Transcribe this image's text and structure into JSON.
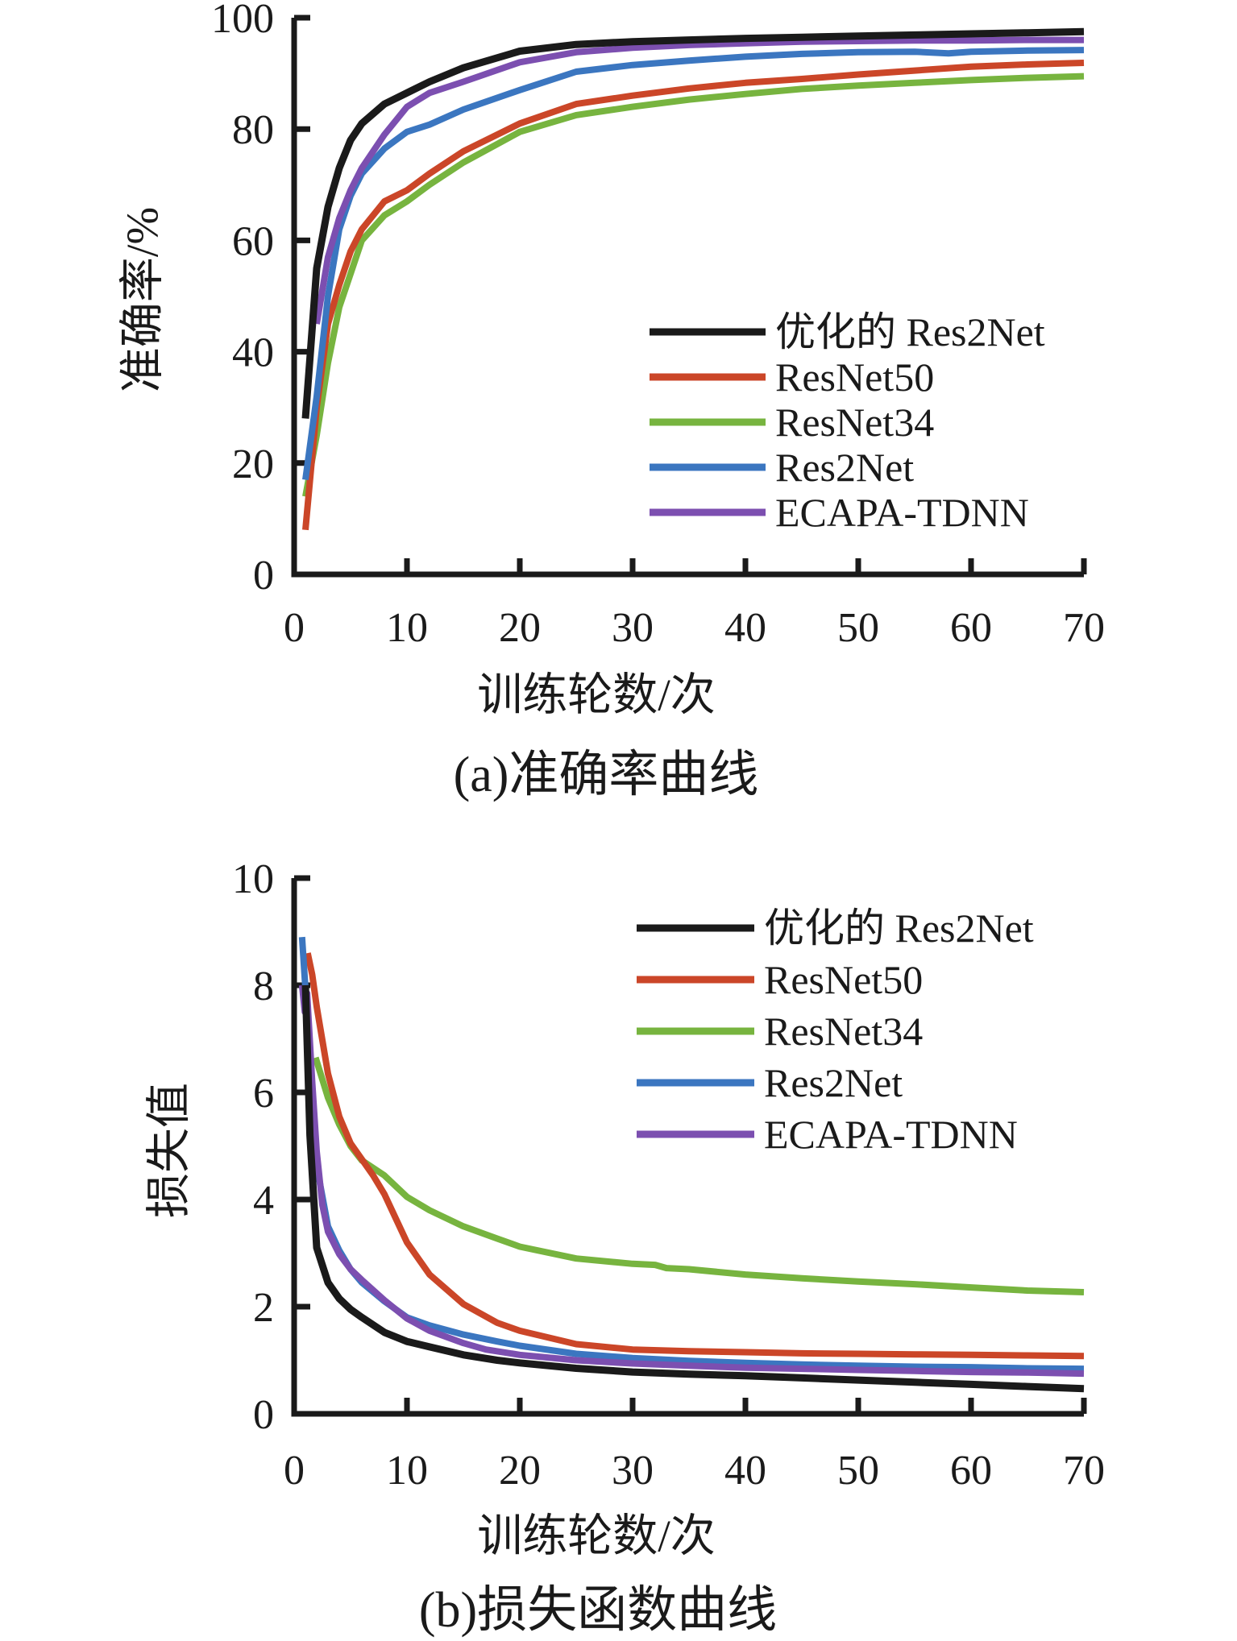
{
  "chart_data": [
    {
      "id": "accuracy",
      "type": "line",
      "title": "",
      "xlabel": "训练轮数/次",
      "ylabel": "准确率/%",
      "caption": "(a)准确率曲线",
      "xlim": [
        0,
        70
      ],
      "ylim": [
        0,
        100
      ],
      "xticks": [
        0,
        10,
        20,
        30,
        40,
        50,
        60,
        70
      ],
      "yticks": [
        0,
        20,
        40,
        60,
        80,
        100
      ],
      "grid": false,
      "legend_position": "inside-right-upper-middle",
      "series": [
        {
          "name": "优化的 Res2Net",
          "color": "#1a1a1a",
          "points": [
            [
              1,
              28
            ],
            [
              2,
              55
            ],
            [
              3,
              66
            ],
            [
              4,
              73
            ],
            [
              5,
              78
            ],
            [
              6,
              81
            ],
            [
              8,
              84.5
            ],
            [
              10,
              86.5
            ],
            [
              12,
              88.5
            ],
            [
              15,
              91
            ],
            [
              20,
              94
            ],
            [
              25,
              95.2
            ],
            [
              30,
              95.7
            ],
            [
              35,
              96
            ],
            [
              40,
              96.3
            ],
            [
              45,
              96.5
            ],
            [
              50,
              96.7
            ],
            [
              55,
              96.9
            ],
            [
              60,
              97.1
            ],
            [
              65,
              97.3
            ],
            [
              70,
              97.5
            ]
          ]
        },
        {
          "name": "ResNet50",
          "color": "#cb4628",
          "points": [
            [
              1,
              8
            ],
            [
              2,
              30
            ],
            [
              3,
              45
            ],
            [
              4,
              52
            ],
            [
              5,
              58
            ],
            [
              6,
              62
            ],
            [
              8,
              67
            ],
            [
              10,
              69
            ],
            [
              12,
              72
            ],
            [
              15,
              76
            ],
            [
              20,
              81
            ],
            [
              25,
              84.5
            ],
            [
              30,
              86
            ],
            [
              35,
              87.3
            ],
            [
              40,
              88.3
            ],
            [
              45,
              89
            ],
            [
              50,
              89.8
            ],
            [
              55,
              90.5
            ],
            [
              60,
              91.2
            ],
            [
              65,
              91.6
            ],
            [
              70,
              91.9
            ]
          ]
        },
        {
          "name": "ResNet34",
          "color": "#77b43f",
          "points": [
            [
              1,
              14
            ],
            [
              2,
              25
            ],
            [
              3,
              38
            ],
            [
              4,
              48
            ],
            [
              5,
              54
            ],
            [
              6,
              60
            ],
            [
              8,
              64.5
            ],
            [
              10,
              67
            ],
            [
              12,
              70
            ],
            [
              15,
              74
            ],
            [
              20,
              79.5
            ],
            [
              25,
              82.5
            ],
            [
              30,
              84
            ],
            [
              35,
              85.3
            ],
            [
              40,
              86.3
            ],
            [
              45,
              87.2
            ],
            [
              50,
              87.8
            ],
            [
              55,
              88.3
            ],
            [
              60,
              88.8
            ],
            [
              65,
              89.2
            ],
            [
              70,
              89.5
            ]
          ]
        },
        {
          "name": "Res2Net",
          "color": "#3b76c0",
          "points": [
            [
              1,
              17
            ],
            [
              2,
              32
            ],
            [
              3,
              50
            ],
            [
              4,
              62
            ],
            [
              5,
              68
            ],
            [
              6,
              72
            ],
            [
              8,
              76.5
            ],
            [
              10,
              79.5
            ],
            [
              12,
              80.8
            ],
            [
              15,
              83.5
            ],
            [
              20,
              87
            ],
            [
              25,
              90.3
            ],
            [
              30,
              91.5
            ],
            [
              35,
              92.3
            ],
            [
              40,
              93
            ],
            [
              45,
              93.5
            ],
            [
              50,
              93.8
            ],
            [
              55,
              93.9
            ],
            [
              58,
              93.6
            ],
            [
              60,
              93.9
            ],
            [
              65,
              94.1
            ],
            [
              70,
              94.2
            ]
          ]
        },
        {
          "name": "ECAPA-TDNN",
          "color": "#7c4fb0",
          "points": [
            [
              2,
              45
            ],
            [
              3,
              57
            ],
            [
              4,
              64
            ],
            [
              5,
              69
            ],
            [
              6,
              73
            ],
            [
              8,
              79
            ],
            [
              10,
              84
            ],
            [
              12,
              86.5
            ],
            [
              15,
              88.5
            ],
            [
              20,
              92
            ],
            [
              25,
              93.8
            ],
            [
              30,
              94.6
            ],
            [
              35,
              95.1
            ],
            [
              40,
              95.4
            ],
            [
              45,
              95.7
            ],
            [
              50,
              95.8
            ],
            [
              55,
              95.9
            ],
            [
              60,
              95.9
            ],
            [
              65,
              96
            ],
            [
              70,
              96
            ]
          ]
        }
      ]
    },
    {
      "id": "loss",
      "type": "line",
      "title": "",
      "xlabel": "训练轮数/次",
      "ylabel": "损失值",
      "caption": "(b)损失函数曲线",
      "xlim": [
        0,
        70
      ],
      "ylim": [
        0,
        10
      ],
      "xticks": [
        0,
        10,
        20,
        30,
        40,
        50,
        60,
        70
      ],
      "yticks": [
        0,
        2,
        4,
        6,
        8,
        10
      ],
      "grid": false,
      "legend_position": "inside-right-upper",
      "series": [
        {
          "name": "优化的 Res2Net",
          "color": "#1a1a1a",
          "points": [
            [
              1,
              8.0
            ],
            [
              1.4,
              5.2
            ],
            [
              2,
              3.1
            ],
            [
              3,
              2.45
            ],
            [
              4,
              2.15
            ],
            [
              5,
              1.95
            ],
            [
              6,
              1.8
            ],
            [
              8,
              1.52
            ],
            [
              10,
              1.35
            ],
            [
              12,
              1.25
            ],
            [
              15,
              1.1
            ],
            [
              18,
              1.0
            ],
            [
              20,
              0.95
            ],
            [
              25,
              0.85
            ],
            [
              30,
              0.78
            ],
            [
              35,
              0.74
            ],
            [
              40,
              0.71
            ],
            [
              45,
              0.67
            ],
            [
              50,
              0.63
            ],
            [
              55,
              0.59
            ],
            [
              60,
              0.55
            ],
            [
              65,
              0.51
            ],
            [
              70,
              0.47
            ]
          ]
        },
        {
          "name": "ResNet50",
          "color": "#cb4628",
          "points": [
            [
              1.2,
              8.6
            ],
            [
              1.6,
              8.2
            ],
            [
              2,
              7.6
            ],
            [
              3,
              6.35
            ],
            [
              4,
              5.55
            ],
            [
              5,
              5.05
            ],
            [
              6,
              4.75
            ],
            [
              7,
              4.45
            ],
            [
              8,
              4.1
            ],
            [
              10,
              3.2
            ],
            [
              12,
              2.6
            ],
            [
              15,
              2.05
            ],
            [
              18,
              1.7
            ],
            [
              20,
              1.55
            ],
            [
              25,
              1.3
            ],
            [
              30,
              1.2
            ],
            [
              35,
              1.17
            ],
            [
              40,
              1.15
            ],
            [
              45,
              1.13
            ],
            [
              50,
              1.12
            ],
            [
              55,
              1.11
            ],
            [
              60,
              1.1
            ],
            [
              65,
              1.09
            ],
            [
              70,
              1.08
            ]
          ]
        },
        {
          "name": "ResNet34",
          "color": "#77b43f",
          "points": [
            [
              1.9,
              6.65
            ],
            [
              3,
              5.9
            ],
            [
              4,
              5.4
            ],
            [
              5,
              5.0
            ],
            [
              6,
              4.73
            ],
            [
              8,
              4.45
            ],
            [
              10,
              4.05
            ],
            [
              12,
              3.8
            ],
            [
              15,
              3.5
            ],
            [
              18,
              3.27
            ],
            [
              20,
              3.12
            ],
            [
              25,
              2.9
            ],
            [
              30,
              2.8
            ],
            [
              32,
              2.78
            ],
            [
              33,
              2.72
            ],
            [
              35,
              2.7
            ],
            [
              40,
              2.6
            ],
            [
              45,
              2.53
            ],
            [
              50,
              2.47
            ],
            [
              55,
              2.42
            ],
            [
              60,
              2.36
            ],
            [
              65,
              2.3
            ],
            [
              70,
              2.27
            ]
          ]
        },
        {
          "name": "Res2Net",
          "color": "#3b76c0",
          "points": [
            [
              0.7,
              8.9
            ],
            [
              1.2,
              7.3
            ],
            [
              1.7,
              5.5
            ],
            [
              2.2,
              4.4
            ],
            [
              3,
              3.5
            ],
            [
              4,
              3.05
            ],
            [
              5,
              2.7
            ],
            [
              6,
              2.45
            ],
            [
              8,
              2.1
            ],
            [
              10,
              1.8
            ],
            [
              12,
              1.65
            ],
            [
              15,
              1.48
            ],
            [
              18,
              1.35
            ],
            [
              20,
              1.27
            ],
            [
              25,
              1.12
            ],
            [
              30,
              1.04
            ],
            [
              35,
              0.99
            ],
            [
              40,
              0.95
            ],
            [
              45,
              0.92
            ],
            [
              50,
              0.9
            ],
            [
              55,
              0.88
            ],
            [
              60,
              0.87
            ],
            [
              65,
              0.85
            ],
            [
              70,
              0.84
            ]
          ]
        },
        {
          "name": "ECAPA-TDNN",
          "color": "#7c4fb0",
          "points": [
            [
              0.7,
              8.0
            ],
            [
              0.95,
              7.5
            ],
            [
              1.15,
              7.85
            ],
            [
              1.6,
              6.2
            ],
            [
              2,
              4.9
            ],
            [
              2.5,
              3.9
            ],
            [
              3,
              3.4
            ],
            [
              4,
              2.98
            ],
            [
              5,
              2.7
            ],
            [
              6,
              2.5
            ],
            [
              8,
              2.12
            ],
            [
              10,
              1.78
            ],
            [
              12,
              1.55
            ],
            [
              15,
              1.32
            ],
            [
              17,
              1.2
            ],
            [
              20,
              1.1
            ],
            [
              25,
              1.0
            ],
            [
              30,
              0.94
            ],
            [
              35,
              0.9
            ],
            [
              40,
              0.86
            ],
            [
              45,
              0.84
            ],
            [
              50,
              0.82
            ],
            [
              55,
              0.8
            ],
            [
              60,
              0.78
            ],
            [
              65,
              0.77
            ],
            [
              70,
              0.75
            ]
          ]
        }
      ]
    }
  ]
}
